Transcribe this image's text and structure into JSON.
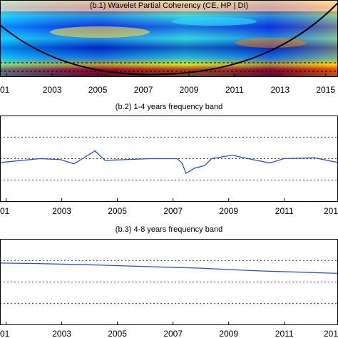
{
  "chart_data": [
    {
      "type": "heatmap",
      "title": "(b.1)  Wavelet Partial Coherency (CE, HP | DI)",
      "xlim": [
        2000.71,
        2015.54
      ],
      "xticks": [
        {
          "value": 2001,
          "label": "01"
        },
        2003,
        2005,
        2007,
        2009,
        2011,
        2013,
        2015
      ]
    },
    {
      "type": "line",
      "title": "(b.2)  1-4 years frequency band",
      "xlim": [
        2000.78,
        2012.93
      ],
      "xticks": [
        {
          "value": 2001,
          "label": "01"
        },
        2003,
        2005,
        2007,
        2009,
        2011,
        {
          "value": 2013,
          "label": "201"
        }
      ],
      "ylim": [
        0,
        1
      ],
      "yticks": [
        0.25,
        0.5,
        0.75
      ],
      "grid": true,
      "color": "#2a4fc9",
      "x": [
        2000.78,
        2002.21,
        2002.95,
        2003.44,
        2004.19,
        2004.56,
        2006.16,
        2007.15,
        2007.32,
        2007.47,
        2007.77,
        2008.14,
        2008.38,
        2009.12,
        2009.86,
        2010.48,
        2010.98,
        2012.09,
        2012.93
      ],
      "values": [
        0.455,
        0.5,
        0.49,
        0.44,
        0.59,
        0.48,
        0.5,
        0.5,
        0.45,
        0.33,
        0.39,
        0.42,
        0.5,
        0.54,
        0.49,
        0.45,
        0.5,
        0.51,
        0.455
      ]
    },
    {
      "type": "line",
      "title": "(b.3)  4-8 years frequency band",
      "xlim": [
        2000.78,
        2012.93
      ],
      "xticks": [
        {
          "value": 2001,
          "label": "01"
        },
        2003,
        2005,
        2007,
        2009,
        2011,
        {
          "value": 2013,
          "label": "201"
        }
      ],
      "ylim": [
        0,
        1
      ],
      "yticks": [
        0.25,
        0.5,
        0.75
      ],
      "grid": true,
      "color": "#2a4fc9",
      "x": [
        2000.78,
        2002,
        2004,
        2006,
        2008,
        2010,
        2012.93
      ],
      "values": [
        0.72,
        0.715,
        0.7,
        0.68,
        0.66,
        0.63,
        0.6
      ]
    }
  ]
}
